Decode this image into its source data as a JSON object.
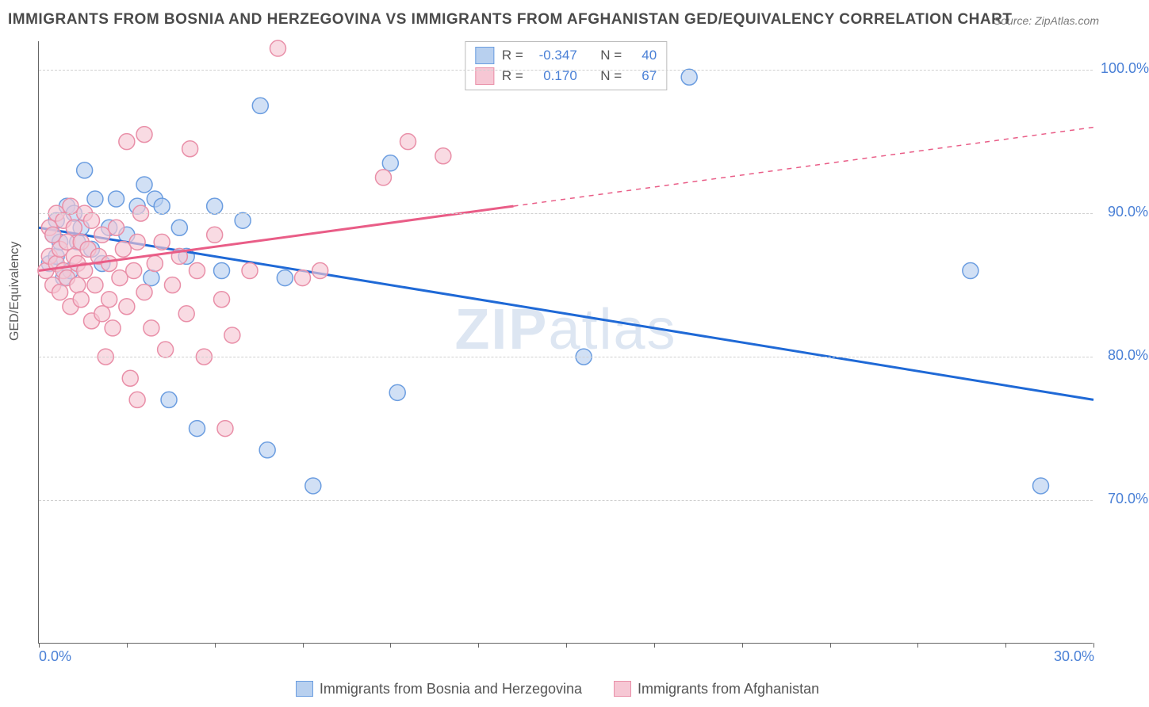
{
  "title": "IMMIGRANTS FROM BOSNIA AND HERZEGOVINA VS IMMIGRANTS FROM AFGHANISTAN GED/EQUIVALENCY CORRELATION CHART",
  "source": "Source: ZipAtlas.com",
  "watermark_bold": "ZIP",
  "watermark_rest": "atlas",
  "ylabel": "GED/Equivalency",
  "chart": {
    "type": "scatter",
    "xlim": [
      0,
      30
    ],
    "ylim": [
      60,
      102
    ],
    "x_ticks": [
      0,
      2.5,
      5,
      7.5,
      10,
      12.5,
      15,
      17.5,
      20,
      22.5,
      25,
      27.5,
      30
    ],
    "x_tick_labels": {
      "0": "0.0%",
      "30": "30.0%"
    },
    "y_grid": [
      70,
      80,
      90,
      100
    ],
    "y_tick_labels": {
      "70": "70.0%",
      "80": "80.0%",
      "90": "90.0%",
      "100": "100.0%"
    },
    "background_color": "#ffffff",
    "grid_color": "#d0d0d0",
    "axis_color": "#666666",
    "tick_label_color": "#4a80d6",
    "marker_radius": 10,
    "marker_stroke_width": 1.5,
    "trend_line_width": 3,
    "series": [
      {
        "id": "bosnia",
        "label": "Immigrants from Bosnia and Herzegovina",
        "fill": "#b8d0ef",
        "stroke": "#6b9de0",
        "line_color": "#1f69d6",
        "R": "-0.347",
        "N": "40",
        "trend": {
          "x1": 0,
          "y1": 89.0,
          "x2": 30,
          "y2": 77.0,
          "dash_from_x": null
        },
        "points": [
          [
            0.3,
            86.5
          ],
          [
            0.4,
            88.5
          ],
          [
            0.5,
            87.0
          ],
          [
            0.5,
            89.5
          ],
          [
            0.6,
            88.0
          ],
          [
            0.7,
            85.5
          ],
          [
            0.8,
            90.5
          ],
          [
            0.9,
            86.0
          ],
          [
            1.0,
            90.0
          ],
          [
            1.1,
            88.0
          ],
          [
            1.2,
            89.0
          ],
          [
            1.3,
            93.0
          ],
          [
            1.5,
            87.5
          ],
          [
            1.6,
            91.0
          ],
          [
            1.8,
            86.5
          ],
          [
            2.0,
            89.0
          ],
          [
            2.2,
            91.0
          ],
          [
            2.5,
            88.5
          ],
          [
            2.8,
            90.5
          ],
          [
            3.0,
            92.0
          ],
          [
            3.2,
            85.5
          ],
          [
            3.3,
            91.0
          ],
          [
            3.5,
            90.5
          ],
          [
            3.7,
            77.0
          ],
          [
            4.0,
            89.0
          ],
          [
            4.2,
            87.0
          ],
          [
            4.5,
            75.0
          ],
          [
            5.0,
            90.5
          ],
          [
            5.2,
            86.0
          ],
          [
            5.8,
            89.5
          ],
          [
            6.3,
            97.5
          ],
          [
            6.5,
            73.5
          ],
          [
            7.0,
            85.5
          ],
          [
            7.8,
            71.0
          ],
          [
            10.0,
            93.5
          ],
          [
            10.2,
            77.5
          ],
          [
            15.5,
            80.0
          ],
          [
            18.5,
            99.5
          ],
          [
            26.5,
            86.0
          ],
          [
            28.5,
            71.0
          ]
        ]
      },
      {
        "id": "afghanistan",
        "label": "Immigrants from Afghanistan",
        "fill": "#f6c7d4",
        "stroke": "#e98fa8",
        "line_color": "#e95d87",
        "R": "0.170",
        "N": "67",
        "trend": {
          "x1": 0,
          "y1": 86.0,
          "x2": 30,
          "y2": 96.0,
          "dash_from_x": 13.5
        },
        "points": [
          [
            0.2,
            86.0
          ],
          [
            0.3,
            87.0
          ],
          [
            0.3,
            89.0
          ],
          [
            0.4,
            85.0
          ],
          [
            0.4,
            88.5
          ],
          [
            0.5,
            86.5
          ],
          [
            0.5,
            90.0
          ],
          [
            0.6,
            84.5
          ],
          [
            0.6,
            87.5
          ],
          [
            0.7,
            89.5
          ],
          [
            0.7,
            86.0
          ],
          [
            0.8,
            88.0
          ],
          [
            0.8,
            85.5
          ],
          [
            0.9,
            90.5
          ],
          [
            0.9,
            83.5
          ],
          [
            1.0,
            87.0
          ],
          [
            1.0,
            89.0
          ],
          [
            1.1,
            85.0
          ],
          [
            1.1,
            86.5
          ],
          [
            1.2,
            88.0
          ],
          [
            1.2,
            84.0
          ],
          [
            1.3,
            90.0
          ],
          [
            1.3,
            86.0
          ],
          [
            1.4,
            87.5
          ],
          [
            1.5,
            82.5
          ],
          [
            1.5,
            89.5
          ],
          [
            1.6,
            85.0
          ],
          [
            1.7,
            87.0
          ],
          [
            1.8,
            83.0
          ],
          [
            1.8,
            88.5
          ],
          [
            1.9,
            80.0
          ],
          [
            2.0,
            86.5
          ],
          [
            2.0,
            84.0
          ],
          [
            2.1,
            82.0
          ],
          [
            2.2,
            89.0
          ],
          [
            2.3,
            85.5
          ],
          [
            2.4,
            87.5
          ],
          [
            2.5,
            83.5
          ],
          [
            2.5,
            95.0
          ],
          [
            2.6,
            78.5
          ],
          [
            2.7,
            86.0
          ],
          [
            2.8,
            88.0
          ],
          [
            2.8,
            77.0
          ],
          [
            2.9,
            90.0
          ],
          [
            3.0,
            84.5
          ],
          [
            3.0,
            95.5
          ],
          [
            3.2,
            82.0
          ],
          [
            3.3,
            86.5
          ],
          [
            3.5,
            88.0
          ],
          [
            3.6,
            80.5
          ],
          [
            3.8,
            85.0
          ],
          [
            4.0,
            87.0
          ],
          [
            4.2,
            83.0
          ],
          [
            4.3,
            94.5
          ],
          [
            4.5,
            86.0
          ],
          [
            4.7,
            80.0
          ],
          [
            5.0,
            88.5
          ],
          [
            5.2,
            84.0
          ],
          [
            5.3,
            75.0
          ],
          [
            5.5,
            81.5
          ],
          [
            6.0,
            86.0
          ],
          [
            6.8,
            101.5
          ],
          [
            7.5,
            85.5
          ],
          [
            8.0,
            86.0
          ],
          [
            9.8,
            92.5
          ],
          [
            10.5,
            95.0
          ],
          [
            11.5,
            94.0
          ]
        ]
      }
    ],
    "legend_top_labels": {
      "R": "R =",
      "N": "N ="
    }
  }
}
